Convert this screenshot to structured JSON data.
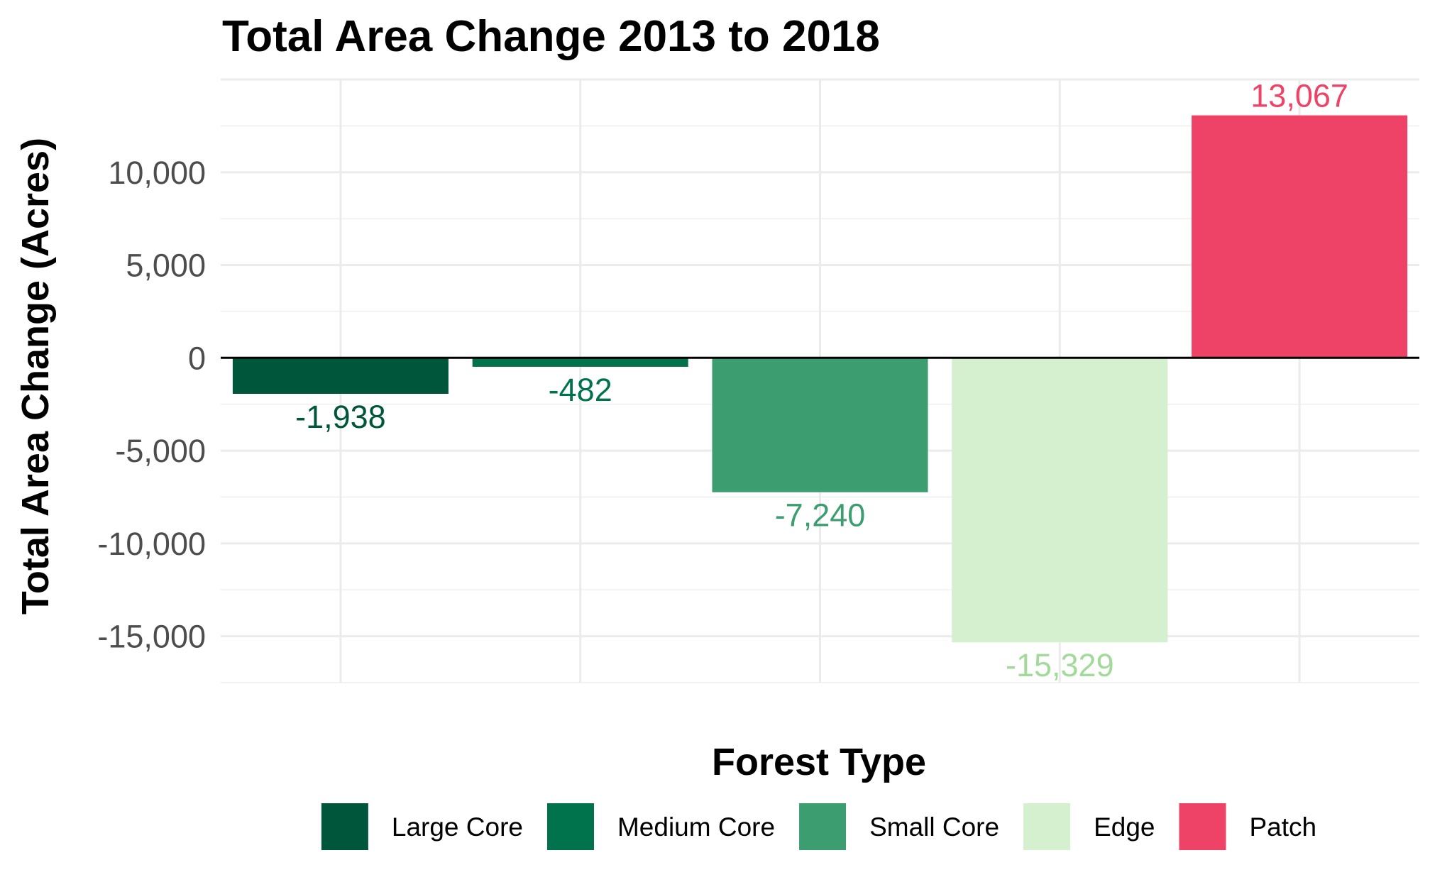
{
  "chart_data": {
    "type": "bar",
    "title": "Total Area Change 2013 to 2018",
    "xlabel": "Forest Type",
    "ylabel": "Total Area Change (Acres)",
    "categories": [
      "Large Core",
      "Medium Core",
      "Small Core",
      "Edge",
      "Patch"
    ],
    "values": [
      -1938,
      -482,
      -7240,
      -15329,
      13067
    ],
    "data_labels": [
      "-1,938",
      "-482",
      "-7,240",
      "-15,329",
      "13,067"
    ],
    "colors": [
      "#00563b",
      "#00734d",
      "#3c9e70",
      "#d4f0cf",
      "#ee4266"
    ],
    "label_colors": [
      "#00563b",
      "#00734d",
      "#3c9e70",
      "#a3d99b",
      "#ee4266"
    ],
    "yticks": [
      -15000,
      -10000,
      -5000,
      0,
      5000,
      10000
    ],
    "ytick_labels": [
      "-15,000",
      "-10,000",
      "-5,000",
      "0",
      "5,000",
      "10,000"
    ],
    "ylim": [
      -17500,
      15000
    ],
    "grid": true,
    "legend": {
      "position": "bottom",
      "entries": [
        "Large Core",
        "Medium Core",
        "Small Core",
        "Edge",
        "Patch"
      ]
    }
  }
}
